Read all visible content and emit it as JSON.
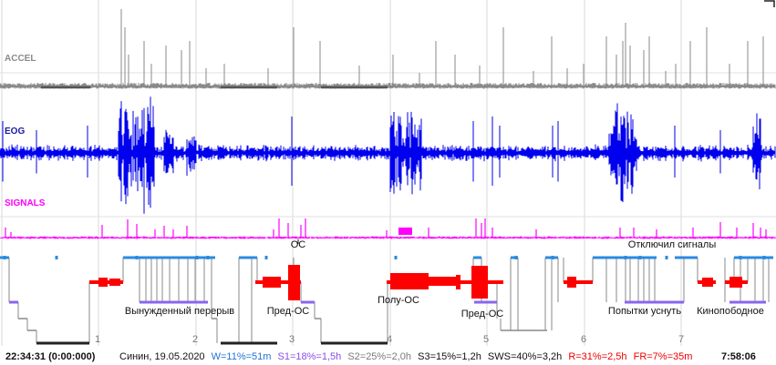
{
  "colors": {
    "accel": "#8a8a8a",
    "eog": "#0000ee",
    "signals": "#ff00ff",
    "wake": "#2a8ae0",
    "rem": "#ff0000",
    "s1": "#8866ee",
    "s2": "#888888",
    "deep": "#222222",
    "grid": "#d8d8d8"
  },
  "chart_data": {
    "type": "line",
    "series": [
      {
        "name": "ACCEL",
        "color": "#8a8a8a"
      },
      {
        "name": "EOG",
        "color": "#0000ee"
      },
      {
        "name": "SIGNALS",
        "color": "#ff00ff"
      }
    ],
    "x_tick_labels": [
      "1",
      "2",
      "3",
      "4",
      "5",
      "6",
      "7"
    ],
    "annotations": [
      "ОС",
      "Отключил сигналы",
      "Вынужденный перерыв",
      "Пред-ОС",
      "Полу-ОС",
      "Пред-ОС",
      "Попытки уснуть",
      "Кинопободное"
    ],
    "start_time": "22:34:31 (0:00:000)",
    "end_time": "7:58:06",
    "subject": "Синин, 19.05.2020",
    "stats": [
      {
        "label": "W=11%=51m",
        "color": "#1e73d6"
      },
      {
        "label": "S1=18%=1,5h",
        "color": "#8a4ce8"
      },
      {
        "label": "S2=25%=2,0h",
        "color": "#7a7a7a"
      },
      {
        "label": "S3=15%=1,2h",
        "color": "#111111"
      },
      {
        "label": "SWS=40%=3,2h",
        "color": "#111111"
      },
      {
        "label": "R=31%=2,5h",
        "color": "#ee0000"
      },
      {
        "label": "FR=7%=35m",
        "color": "#ee0000"
      }
    ],
    "grid": true
  }
}
